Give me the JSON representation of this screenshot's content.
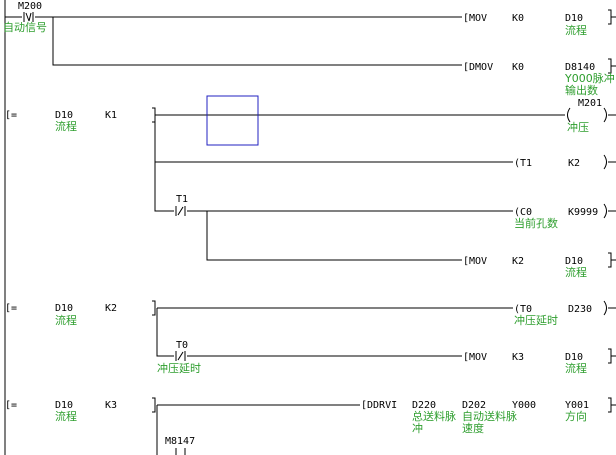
{
  "rungs": [
    {
      "contact": "M200",
      "comment": "自动信号",
      "outputs": [
        {
          "op": "[MOV",
          "args": [
            "K0",
            "D10"
          ],
          "comment": [
            "流程"
          ]
        },
        {
          "op": "[DMOV",
          "args": [
            "K0",
            "D8140"
          ],
          "comment": [
            "Y000脉冲",
            "输出数"
          ]
        }
      ]
    },
    {
      "compare": {
        "op": "[=",
        "args": [
          "D10",
          "K1"
        ],
        "comment": "流程"
      },
      "coil": {
        "device": "M201",
        "comment": "冲压"
      },
      "timer": {
        "op": "(T1",
        "arg": "K2"
      },
      "contact": "T1",
      "counter": {
        "op": "(C0",
        "arg": "K9999",
        "comment": "当前孔数"
      },
      "move": {
        "op": "[MOV",
        "args": [
          "K2",
          "D10"
        ],
        "comment": "流程"
      }
    },
    {
      "compare": {
        "op": "[=",
        "args": [
          "D10",
          "K2"
        ],
        "comment": "流程"
      },
      "timer": {
        "op": "(T0",
        "arg": "D230",
        "comment": "冲压延时"
      },
      "contact": "T0",
      "contact_comment": "冲压延时",
      "move": {
        "op": "[MOV",
        "args": [
          "K3",
          "D10"
        ],
        "comment": "流程"
      }
    },
    {
      "compare": {
        "op": "[=",
        "args": [
          "D10",
          "K3"
        ],
        "comment": "流程"
      },
      "drive": {
        "op": "[DDRVI",
        "args": [
          "D220",
          "D202",
          "Y000",
          "Y001"
        ],
        "comments": [
          [
            "总送料脉",
            "冲"
          ],
          [
            "自动送料脉",
            "速度"
          ],
          [],
          [
            "方向"
          ]
        ]
      },
      "contact": "M8147"
    }
  ]
}
